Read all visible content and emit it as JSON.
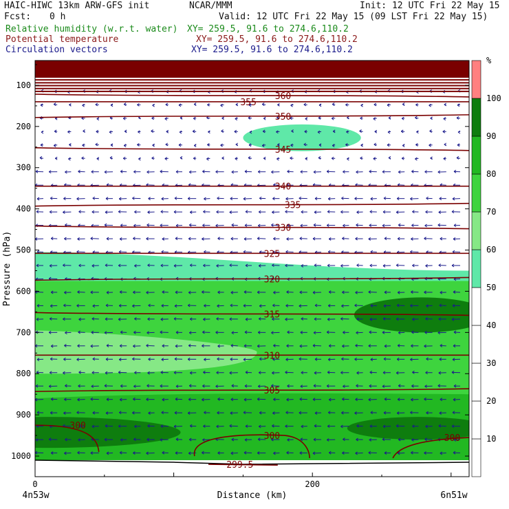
{
  "header": {
    "model": "HAIC-HIWC 13km ARW-GFS init",
    "center": "NCAR/MMM",
    "init": "Init: 12 UTC Fri 22 May 15",
    "fcst_label": "Fcst:",
    "fcst_value": "0 h",
    "valid": "Valid: 12 UTC Fri 22 May 15 (09 LST Fri 22 May 15)"
  },
  "fields": [
    {
      "name": "Relative humidity (w.r.t. water)",
      "xy": "XY= 259.5, 91.6 to 274.6,110.2",
      "color": "#1a8a1a"
    },
    {
      "name": "Potential temperature",
      "xy": "XY= 259.5, 91.6 to 274.6,110.2",
      "color": "#8b1a1a"
    },
    {
      "name": "Circulation vectors",
      "xy": "XY= 259.5, 91.6 to 274.6,110.2",
      "color": "#1a1a8b"
    }
  ],
  "chart_data": {
    "type": "heatmap",
    "xlabel": "Distance (km)",
    "ylabel": "Pressure (hPa)",
    "x_ticks": [
      "0",
      "200"
    ],
    "x_tick_values": [
      0,
      200
    ],
    "xlim": [
      0,
      313
    ],
    "y_ticks": [
      "100",
      "200",
      "300",
      "400",
      "500",
      "600",
      "700",
      "800",
      "900",
      "1000"
    ],
    "y_tick_values": [
      100,
      200,
      300,
      400,
      500,
      600,
      700,
      800,
      900,
      1000
    ],
    "ylim": [
      1050,
      40
    ],
    "left_endpoint": "4n53w",
    "right_endpoint": "6n51w",
    "colorbar": {
      "unit": "%",
      "levels": [
        "10",
        "20",
        "30",
        "40",
        "50",
        "60",
        "70",
        "80",
        "90",
        "100"
      ],
      "colors": [
        "#ffffff",
        "#ffffff",
        "#ffffff",
        "#ffffff",
        "#ffffff",
        "#5fe8a8",
        "#86e886",
        "#3ed43e",
        "#22b822",
        "#0e7d0e",
        "#ff8080"
      ]
    },
    "humidity_regions": [
      {
        "name": "upper moist patch",
        "rh": 50,
        "x": [
          150,
          235
        ],
        "p": [
          195,
          260
        ]
      },
      {
        "name": "mid-level layer",
        "rh": 50,
        "p_top_left": 505,
        "p_top_right": 550,
        "p_bottom": 575
      },
      {
        "name": "lower moist layer",
        "rh": 70,
        "p": [
          575,
          1010
        ]
      },
      {
        "name": "drier band",
        "rh": 60,
        "x": [
          0,
          160
        ],
        "p": [
          695,
          800
        ]
      },
      {
        "name": "low-level moist band",
        "rh": 80,
        "p": [
          850,
          1010
        ]
      },
      {
        "name": "near-surface saturated left",
        "rh": 90,
        "x": [
          0,
          95
        ],
        "p": [
          905,
          980
        ]
      },
      {
        "name": "near-surface saturated right",
        "rh": 90,
        "x": [
          240,
          313
        ],
        "p": [
          905,
          960
        ]
      },
      {
        "name": "mid-level saturated right",
        "rh": 90,
        "x": [
          245,
          313
        ],
        "p": [
          615,
          700
        ]
      }
    ],
    "theta_contours": [
      {
        "label": "360",
        "p": 125,
        "label_x": 173
      },
      {
        "label": "355",
        "p": 140,
        "label_x": 148
      },
      {
        "label": "350",
        "p": 175,
        "label_x": 173
      },
      {
        "label": "345",
        "p": 255,
        "label_x": 173
      },
      {
        "label": "340",
        "p": 345,
        "label_x": 173
      },
      {
        "label": "335",
        "p": 390,
        "label_x": 180
      },
      {
        "label": "330",
        "p": 445,
        "label_x": 173
      },
      {
        "label": "325",
        "p": 508,
        "label_x": 165
      },
      {
        "label": "320",
        "p": 570,
        "label_x": 165
      },
      {
        "label": "315",
        "p": 655,
        "label_x": 165
      },
      {
        "label": "310",
        "p": 755,
        "label_x": 165
      },
      {
        "label": "305",
        "p": 840,
        "label_x": 165
      },
      {
        "label": "300",
        "p": 925,
        "label_x": 25
      },
      {
        "label": "300",
        "p": 950,
        "label_x": 165
      },
      {
        "label": "300",
        "p": 955,
        "label_x": 295
      },
      {
        "label": "299.5",
        "p": 1020,
        "label_x": 138
      }
    ],
    "wind_vectors": {
      "upper_levels": "weak, mixed direction",
      "below_300hPa": "easterly (pointing left)"
    }
  }
}
